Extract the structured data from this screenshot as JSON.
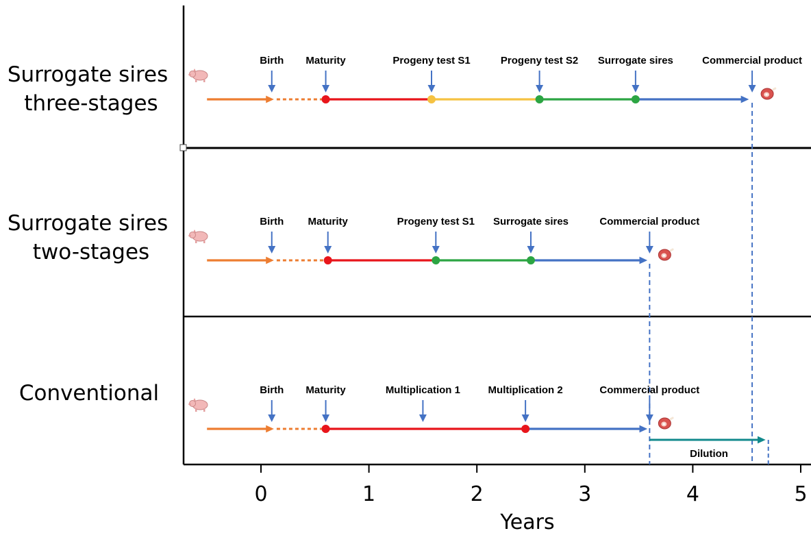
{
  "axis": {
    "title": "Years",
    "range": [
      -0.55,
      5.05
    ],
    "ticks": [
      0,
      1,
      2,
      3,
      4,
      5
    ]
  },
  "colors": {
    "birth_arrow": "#ed7d31",
    "juvenile": "#ed7d31",
    "maturity_stage": "#e8151b",
    "progeny_s1_stage": "#f5c242",
    "progeny_s2_stage": "#2ca543",
    "surrogate_stage": "#4472c4",
    "dilution": "#11898c",
    "pointer": "#4472c4",
    "frame": "#000000"
  },
  "icons": {
    "start": "pig-icon",
    "end": "meat-icon"
  },
  "rows": [
    {
      "title_lines": [
        "Surrogate sires",
        "three-stages"
      ],
      "segments": [
        {
          "from": -0.5,
          "to": 0.12,
          "style": "arrow",
          "color": "#ed7d31"
        },
        {
          "from": 0.12,
          "to": 0.6,
          "style": "dotted",
          "color": "#ed7d31"
        },
        {
          "from": 0.6,
          "to": 1.58,
          "style": "solid",
          "color": "#e8151b"
        },
        {
          "from": 1.58,
          "to": 2.58,
          "style": "solid",
          "color": "#f5c242"
        },
        {
          "from": 2.58,
          "to": 3.47,
          "style": "solid",
          "color": "#2ca543"
        },
        {
          "from": 3.47,
          "to": 4.52,
          "style": "arrow",
          "color": "#4472c4"
        }
      ],
      "dots": [
        {
          "x": 0.6,
          "color": "#e8151b"
        },
        {
          "x": 1.58,
          "color": "#f5c242"
        },
        {
          "x": 2.58,
          "color": "#2ca543"
        },
        {
          "x": 3.47,
          "color": "#2ca543"
        }
      ],
      "events": [
        {
          "label": "Birth",
          "x": 0.1
        },
        {
          "label": "Maturity",
          "x": 0.6
        },
        {
          "label": "Progeny test S1",
          "x": 1.58
        },
        {
          "label": "Progeny test S2",
          "x": 2.58
        },
        {
          "label": "Surrogate sires",
          "x": 3.47
        },
        {
          "label": "Commercial product",
          "x": 4.55
        }
      ]
    },
    {
      "title_lines": [
        "Surrogate sires",
        "two-stages"
      ],
      "segments": [
        {
          "from": -0.5,
          "to": 0.12,
          "style": "arrow",
          "color": "#ed7d31"
        },
        {
          "from": 0.12,
          "to": 0.62,
          "style": "dotted",
          "color": "#ed7d31"
        },
        {
          "from": 0.62,
          "to": 1.62,
          "style": "solid",
          "color": "#e8151b"
        },
        {
          "from": 1.62,
          "to": 2.5,
          "style": "solid",
          "color": "#2ca543"
        },
        {
          "from": 2.5,
          "to": 3.58,
          "style": "arrow",
          "color": "#4472c4"
        }
      ],
      "dots": [
        {
          "x": 0.62,
          "color": "#e8151b"
        },
        {
          "x": 1.62,
          "color": "#2ca543"
        },
        {
          "x": 2.5,
          "color": "#2ca543"
        }
      ],
      "events": [
        {
          "label": "Birth",
          "x": 0.1
        },
        {
          "label": "Maturity",
          "x": 0.62
        },
        {
          "label": "Progeny test S1",
          "x": 1.62
        },
        {
          "label": "Surrogate sires",
          "x": 2.5
        },
        {
          "label": "Commercial product",
          "x": 3.6
        }
      ]
    },
    {
      "title_lines": [
        "Conventional"
      ],
      "segments": [
        {
          "from": -0.5,
          "to": 0.12,
          "style": "arrow",
          "color": "#ed7d31"
        },
        {
          "from": 0.12,
          "to": 0.6,
          "style": "dotted",
          "color": "#ed7d31"
        },
        {
          "from": 0.6,
          "to": 2.45,
          "style": "solid",
          "color": "#e8151b"
        },
        {
          "from": 2.45,
          "to": 3.58,
          "style": "arrow",
          "color": "#4472c4"
        }
      ],
      "dots": [
        {
          "x": 0.6,
          "color": "#e8151b"
        },
        {
          "x": 2.45,
          "color": "#e8151b"
        }
      ],
      "events": [
        {
          "label": "Birth",
          "x": 0.1
        },
        {
          "label": "Maturity",
          "x": 0.6
        },
        {
          "label": "Multiplication 1",
          "x": 1.5
        },
        {
          "label": "Multiplication 2",
          "x": 2.45
        },
        {
          "label": "Commercial product",
          "x": 3.6
        }
      ],
      "dilution": {
        "label": "Dilution",
        "from": 3.6,
        "to": 4.7
      }
    }
  ],
  "dashed_guides": [
    3.6,
    4.55,
    4.7
  ]
}
